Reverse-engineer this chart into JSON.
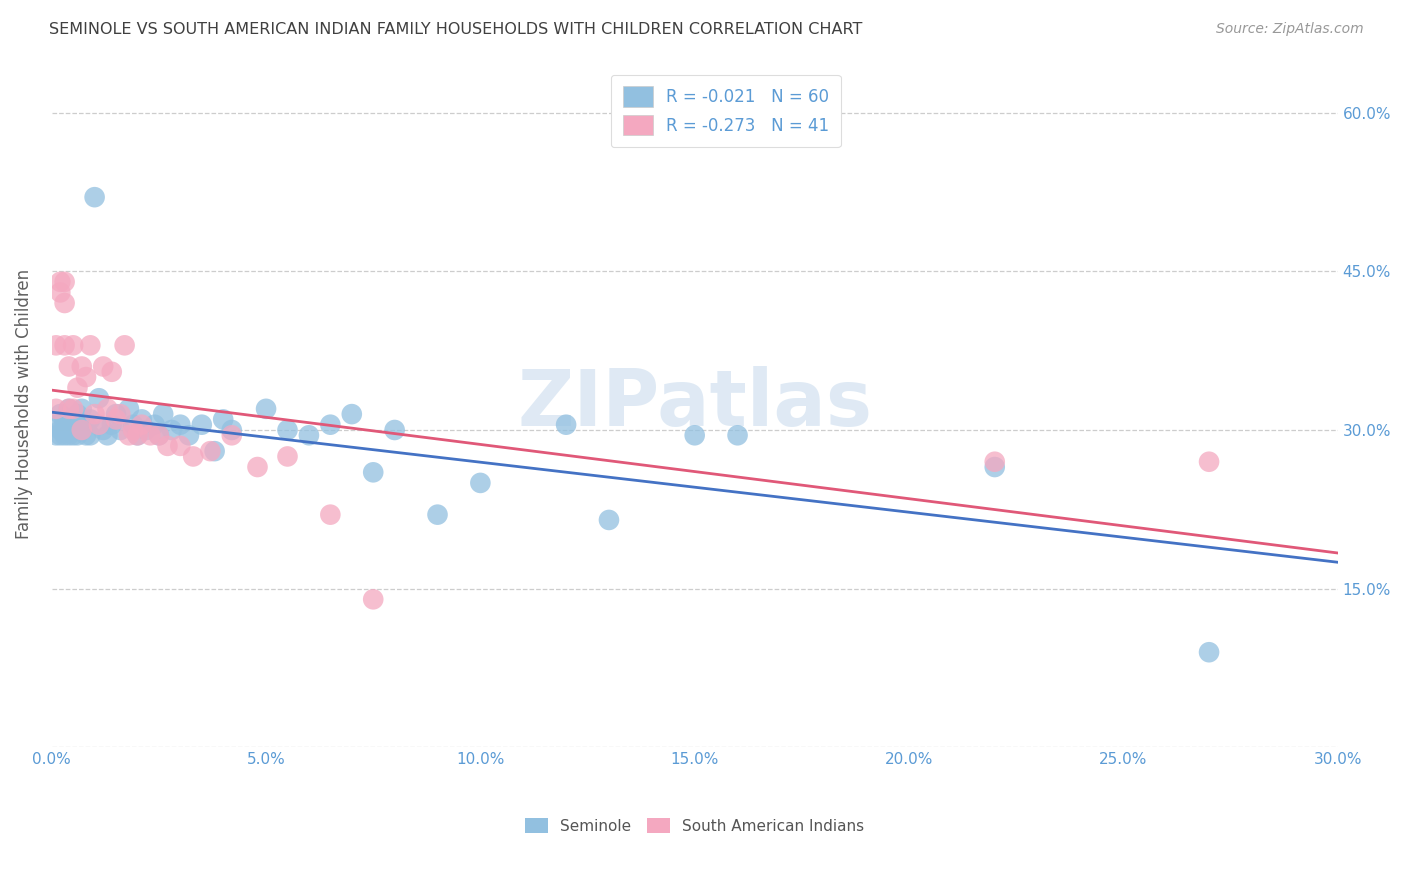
{
  "title": "SEMINOLE VS SOUTH AMERICAN INDIAN FAMILY HOUSEHOLDS WITH CHILDREN CORRELATION CHART",
  "source": "Source: ZipAtlas.com",
  "xlim": [
    0.0,
    0.3
  ],
  "ylim": [
    0.0,
    0.65
  ],
  "watermark": "ZIPatlas",
  "legend_entry_1": "R = -0.021   N = 60",
  "legend_entry_2": "R = -0.273   N = 41",
  "seminole_color": "#92c0e0",
  "south_american_color": "#f4a8c0",
  "seminole_line_color": "#4472c4",
  "south_american_line_color": "#e05878",
  "background_color": "#ffffff",
  "grid_color": "#c8c8c8",
  "axis_color": "#5b9bd5",
  "title_color": "#404040",
  "label_color": "#606060",
  "seminole_x": [
    0.001,
    0.001,
    0.002,
    0.002,
    0.002,
    0.003,
    0.003,
    0.003,
    0.004,
    0.004,
    0.004,
    0.005,
    0.005,
    0.005,
    0.006,
    0.006,
    0.006,
    0.007,
    0.007,
    0.008,
    0.008,
    0.009,
    0.009,
    0.01,
    0.011,
    0.012,
    0.013,
    0.014,
    0.015,
    0.016,
    0.018,
    0.019,
    0.02,
    0.021,
    0.022,
    0.024,
    0.025,
    0.026,
    0.028,
    0.03,
    0.032,
    0.035,
    0.038,
    0.04,
    0.042,
    0.05,
    0.055,
    0.06,
    0.065,
    0.07,
    0.075,
    0.08,
    0.09,
    0.1,
    0.12,
    0.13,
    0.15,
    0.16,
    0.22,
    0.27
  ],
  "seminole_y": [
    0.305,
    0.295,
    0.315,
    0.3,
    0.295,
    0.31,
    0.305,
    0.295,
    0.32,
    0.3,
    0.295,
    0.305,
    0.295,
    0.31,
    0.3,
    0.315,
    0.295,
    0.32,
    0.3,
    0.295,
    0.305,
    0.31,
    0.295,
    0.52,
    0.33,
    0.3,
    0.295,
    0.305,
    0.315,
    0.3,
    0.32,
    0.305,
    0.295,
    0.31,
    0.3,
    0.305,
    0.295,
    0.315,
    0.3,
    0.305,
    0.295,
    0.305,
    0.28,
    0.31,
    0.3,
    0.32,
    0.3,
    0.295,
    0.305,
    0.315,
    0.26,
    0.3,
    0.22,
    0.25,
    0.305,
    0.215,
    0.295,
    0.295,
    0.265,
    0.09
  ],
  "south_american_x": [
    0.001,
    0.001,
    0.002,
    0.002,
    0.003,
    0.003,
    0.003,
    0.004,
    0.004,
    0.005,
    0.005,
    0.006,
    0.007,
    0.007,
    0.008,
    0.009,
    0.01,
    0.011,
    0.012,
    0.013,
    0.014,
    0.015,
    0.016,
    0.017,
    0.018,
    0.019,
    0.02,
    0.021,
    0.023,
    0.025,
    0.027,
    0.03,
    0.033,
    0.037,
    0.042,
    0.048,
    0.055,
    0.065,
    0.075,
    0.22,
    0.27
  ],
  "south_american_y": [
    0.38,
    0.32,
    0.44,
    0.43,
    0.44,
    0.42,
    0.38,
    0.36,
    0.32,
    0.38,
    0.32,
    0.34,
    0.36,
    0.3,
    0.35,
    0.38,
    0.315,
    0.305,
    0.36,
    0.32,
    0.355,
    0.31,
    0.315,
    0.38,
    0.295,
    0.3,
    0.295,
    0.305,
    0.295,
    0.295,
    0.285,
    0.285,
    0.275,
    0.28,
    0.295,
    0.265,
    0.275,
    0.22,
    0.14,
    0.27,
    0.27
  ]
}
